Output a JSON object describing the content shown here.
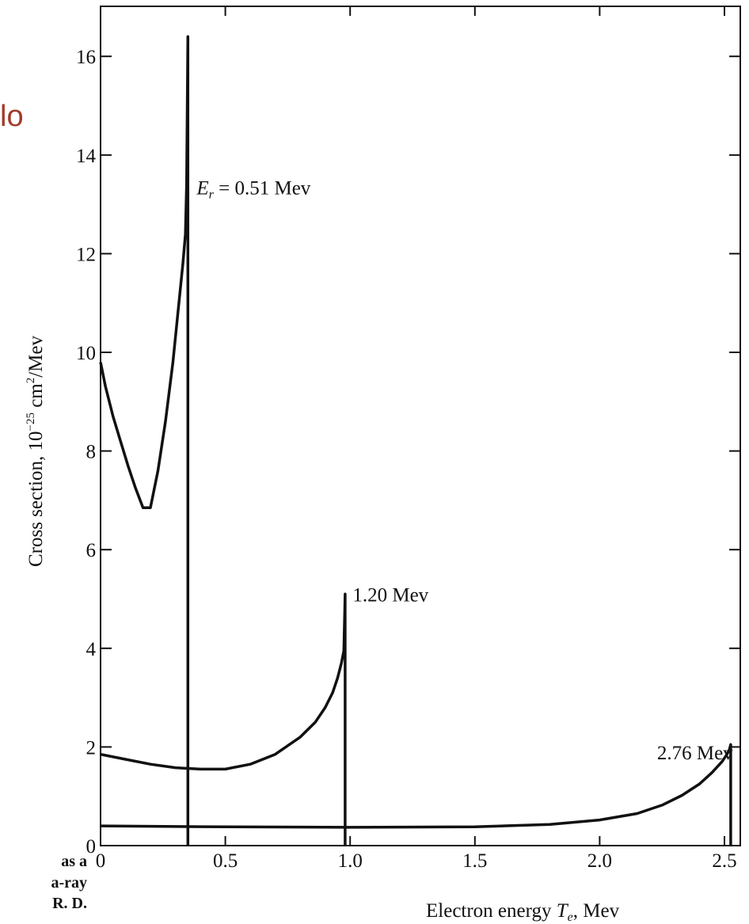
{
  "slide_fragment": "lo",
  "caption_fragments": [
    "as a",
    "a-ray",
    "R. D."
  ],
  "chart_data": {
    "type": "line",
    "title": "",
    "xlabel": "Electron energy T_e, Mev",
    "xlabel_parts": [
      "Electron energy ",
      "T",
      "e",
      ", Mev"
    ],
    "ylabel": "Cross section, 10^-25 cm^2/Mev",
    "ylabel_parts": [
      "Cross section, 10",
      "−25",
      " cm",
      "2",
      "/Mev"
    ],
    "xlim": [
      0,
      2.6
    ],
    "ylim": [
      0,
      17
    ],
    "xticks": [
      0,
      0.5,
      1.0,
      1.5,
      2.0,
      2.5
    ],
    "xtick_labels": [
      "0",
      "0.5",
      "1.0",
      "1.5",
      "2.0",
      "2.5"
    ],
    "yticks": [
      0,
      2,
      4,
      6,
      8,
      10,
      12,
      14,
      16
    ],
    "ytick_labels": [
      "0",
      "2",
      "4",
      "6",
      "8",
      "10",
      "12",
      "14",
      "16"
    ],
    "grid": false,
    "series": [
      {
        "label_parts": [
          "E",
          "r",
          " = 0.51 Mev"
        ],
        "label_anchor": [
          0.385,
          13.2
        ],
        "x": [
          0,
          0.02,
          0.05,
          0.08,
          0.11,
          0.14,
          0.17,
          0.2,
          0.23,
          0.26,
          0.29,
          0.31,
          0.33,
          0.34,
          0.345,
          0.35,
          0.35
        ],
        "y": [
          9.8,
          9.3,
          8.7,
          8.2,
          7.7,
          7.25,
          6.85,
          6.85,
          7.6,
          8.6,
          9.8,
          10.8,
          11.8,
          12.4,
          13.4,
          16.4,
          0
        ]
      },
      {
        "label_parts": [
          "1.20 Mev"
        ],
        "label_anchor": [
          1.01,
          4.95
        ],
        "x": [
          0,
          0.1,
          0.2,
          0.3,
          0.4,
          0.5,
          0.6,
          0.7,
          0.8,
          0.86,
          0.9,
          0.93,
          0.95,
          0.965,
          0.975,
          0.98,
          0.98
        ],
        "y": [
          1.85,
          1.75,
          1.65,
          1.58,
          1.55,
          1.55,
          1.65,
          1.85,
          2.2,
          2.5,
          2.8,
          3.1,
          3.4,
          3.7,
          3.95,
          5.1,
          0
        ]
      },
      {
        "label_parts": [
          "2.76 Mev"
        ],
        "label_anchor": [
          2.23,
          1.75
        ],
        "x": [
          0,
          0.5,
          1.0,
          1.5,
          1.8,
          2.0,
          2.15,
          2.25,
          2.33,
          2.4,
          2.45,
          2.49,
          2.51,
          2.52,
          2.525,
          2.525
        ],
        "y": [
          0.4,
          0.38,
          0.37,
          0.38,
          0.43,
          0.52,
          0.65,
          0.82,
          1.02,
          1.25,
          1.48,
          1.7,
          1.85,
          1.95,
          2.05,
          0
        ]
      }
    ]
  }
}
